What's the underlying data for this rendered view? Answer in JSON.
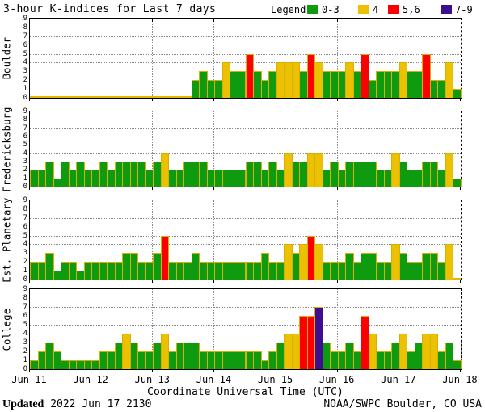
{
  "title": "3-hour K-indices for Last 7 days",
  "legend": {
    "label": "Legend:",
    "items": [
      {
        "label": "0-3",
        "color": "#0f9b0f"
      },
      {
        "label": "4",
        "color": "#ecc102"
      },
      {
        "label": "5,6",
        "color": "#fb0000"
      },
      {
        "label": "7-9",
        "color": "#3f0d90"
      }
    ]
  },
  "x_axis": {
    "tick_labels": [
      "Jun 11",
      "Jun 12",
      "Jun 13",
      "Jun 14",
      "Jun 15",
      "Jun 16",
      "Jun 17",
      "Jun 18"
    ],
    "title": "Coordinate Universal Time (UTC)"
  },
  "y_axis": {
    "tick_labels": [
      "0",
      "1",
      "2",
      "3",
      "4",
      "5",
      "6",
      "7",
      "8",
      "9"
    ],
    "gridlines_at": [
      4,
      5,
      7
    ],
    "range": [
      0,
      9
    ]
  },
  "footer": {
    "updated_label": "Updated",
    "updated_value": "2022 Jun 17 2130",
    "credit": "NOAA/SWPC Boulder, CO USA"
  },
  "colors": {
    "green": "#0f9b0f",
    "yellow": "#ecc102",
    "red": "#fb0000",
    "purple": "#3f0d90",
    "bar_outline": "#d9af03",
    "grid": "#8a8a8a"
  },
  "chart_data": {
    "type": "bar",
    "hours_per_bar": 3,
    "bars_per_day": 8,
    "days": [
      "Jun 11",
      "Jun 12",
      "Jun 13",
      "Jun 14",
      "Jun 15",
      "Jun 16",
      "Jun 17"
    ],
    "ylim": [
      0,
      9
    ],
    "color_rule": {
      "0-3": "green",
      "4": "yellow",
      "5-6": "red",
      "7-9": "purple"
    },
    "stations": [
      {
        "name": "Boulder",
        "k_values": [
          0,
          0,
          0,
          0,
          0,
          0,
          0,
          0,
          0,
          0,
          0,
          0,
          0,
          0,
          0,
          0,
          0,
          0,
          0,
          0,
          0,
          2,
          3,
          2,
          2,
          4,
          3,
          3,
          5,
          3,
          2,
          3,
          4,
          4,
          4,
          3,
          5,
          4,
          3,
          3,
          3,
          4,
          3,
          5,
          2,
          3,
          3,
          3,
          4,
          3,
          3,
          5,
          2,
          2,
          4,
          1
        ]
      },
      {
        "name": "Fredericksburg",
        "k_values": [
          2,
          2,
          3,
          1,
          3,
          2,
          3,
          2,
          2,
          3,
          2,
          3,
          3,
          3,
          3,
          2,
          3,
          4,
          2,
          2,
          3,
          3,
          3,
          2,
          2,
          2,
          2,
          2,
          3,
          3,
          2,
          3,
          2,
          4,
          3,
          3,
          4,
          4,
          2,
          3,
          2,
          3,
          3,
          3,
          3,
          2,
          2,
          4,
          3,
          2,
          2,
          3,
          3,
          2,
          4,
          1
        ]
      },
      {
        "name": "Est. Planetary",
        "k_values": [
          2,
          2,
          3,
          1,
          2,
          2,
          1,
          2,
          2,
          2,
          2,
          2,
          3,
          3,
          2,
          2,
          3,
          5,
          2,
          2,
          2,
          3,
          2,
          2,
          2,
          2,
          2,
          2,
          2,
          2,
          3,
          2,
          2,
          4,
          3,
          4,
          5,
          4,
          2,
          2,
          2,
          3,
          2,
          3,
          3,
          2,
          2,
          4,
          3,
          2,
          2,
          3,
          3,
          2,
          4,
          0
        ]
      },
      {
        "name": "College",
        "k_values": [
          1,
          2,
          3,
          2,
          1,
          1,
          1,
          1,
          1,
          2,
          2,
          3,
          4,
          3,
          2,
          2,
          3,
          4,
          2,
          3,
          3,
          3,
          2,
          2,
          2,
          2,
          2,
          2,
          2,
          2,
          1,
          2,
          3,
          4,
          4,
          6,
          6,
          7,
          3,
          2,
          2,
          3,
          2,
          6,
          4,
          2,
          2,
          3,
          4,
          2,
          3,
          4,
          4,
          2,
          3,
          1
        ]
      }
    ]
  }
}
